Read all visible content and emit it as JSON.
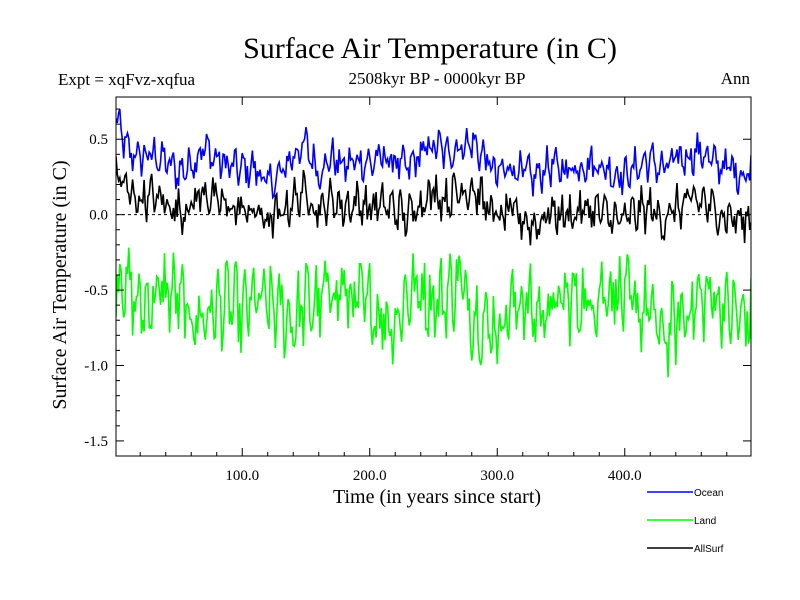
{
  "chart_data": {
    "type": "line",
    "title": "Surface Air Temperature (in C)",
    "subtitle": "2508kyr BP - 0000kyr BP",
    "left_label": "Expt = xqFvz-xqfua",
    "right_label": "Ann",
    "xlabel": "Time (in years since start)",
    "ylabel": "Surface Air Temperature (in C)",
    "xlim": [
      1,
      499
    ],
    "ylim": [
      -1.6,
      0.78
    ],
    "x_ticks": [
      100,
      200,
      300,
      400
    ],
    "x_tick_labels": [
      "100.0",
      "200.0",
      "300.0",
      "400.0"
    ],
    "y_ticks": [
      0.5,
      0.0,
      -0.5,
      -1.0,
      -1.5
    ],
    "y_tick_labels": [
      "0.5",
      "0.0",
      "-0.5",
      "-1.0",
      "-1.5"
    ],
    "zero_line": true,
    "legend_position": "bottom-right",
    "series": [
      {
        "name": "Ocean",
        "color": "#0000ff",
        "x_step": 10,
        "x_start": 0,
        "values": [
          0.66,
          0.42,
          0.38,
          0.4,
          0.35,
          0.28,
          0.34,
          0.45,
          0.36,
          0.32,
          0.3,
          0.31,
          0.2,
          0.26,
          0.4,
          0.46,
          0.28,
          0.38,
          0.32,
          0.36,
          0.34,
          0.38,
          0.35,
          0.3,
          0.4,
          0.46,
          0.41,
          0.45,
          0.48,
          0.38,
          0.26,
          0.32,
          0.28,
          0.24,
          0.33,
          0.3,
          0.31,
          0.34,
          0.33,
          0.28,
          0.26,
          0.32,
          0.36,
          0.3,
          0.36,
          0.39,
          0.42,
          0.34,
          0.32,
          0.27
        ]
      },
      {
        "name": "Land",
        "color": "#00ff00",
        "x_step": 10,
        "x_start": 0,
        "values": [
          -0.35,
          -0.48,
          -0.62,
          -0.55,
          -0.5,
          -0.55,
          -0.7,
          -0.68,
          -0.62,
          -0.58,
          -0.66,
          -0.56,
          -0.6,
          -0.64,
          -0.72,
          -0.58,
          -0.6,
          -0.48,
          -0.52,
          -0.58,
          -0.6,
          -0.68,
          -0.72,
          -0.52,
          -0.5,
          -0.58,
          -0.55,
          -0.42,
          -0.65,
          -0.72,
          -0.76,
          -0.62,
          -0.56,
          -0.66,
          -0.62,
          -0.58,
          -0.55,
          -0.6,
          -0.52,
          -0.48,
          -0.56,
          -0.62,
          -0.64,
          -0.82,
          -0.72,
          -0.62,
          -0.56,
          -0.54,
          -0.62,
          -0.68
        ]
      },
      {
        "name": "AllSurf",
        "color": "#000000",
        "x_step": 10,
        "x_start": 0,
        "values": [
          0.32,
          0.15,
          0.1,
          0.12,
          0.08,
          0.02,
          0.06,
          0.16,
          0.08,
          0.05,
          0.03,
          0.02,
          -0.04,
          0.0,
          0.1,
          0.15,
          0.02,
          0.1,
          0.05,
          0.08,
          0.05,
          0.06,
          0.04,
          -0.02,
          0.1,
          0.15,
          0.1,
          0.16,
          0.18,
          0.08,
          -0.03,
          0.02,
          -0.03,
          -0.08,
          0.02,
          0.0,
          0.0,
          0.04,
          0.02,
          -0.02,
          -0.04,
          0.02,
          0.04,
          -0.04,
          0.04,
          0.08,
          0.1,
          0.02,
          0.0,
          -0.04
        ]
      }
    ]
  }
}
